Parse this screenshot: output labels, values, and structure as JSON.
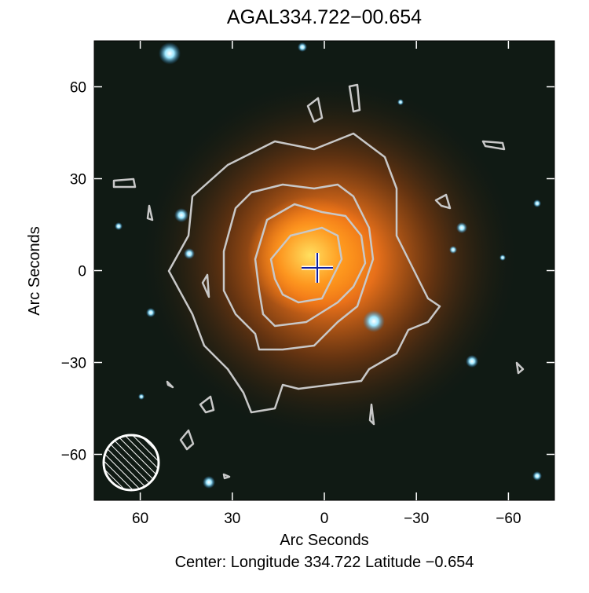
{
  "chart_data": {
    "type": "image",
    "title": "AGAL334.722−00.654",
    "xlabel": "Arc Seconds",
    "ylabel": "Arc Seconds",
    "footer": "Center:  Longitude 334.722 Latitude −0.654",
    "xlim": [
      75,
      -75
    ],
    "ylim": [
      -75,
      75
    ],
    "xticks": [
      60,
      30,
      0,
      {
        "value": -30,
        "label": "−30"
      },
      {
        "value": -60,
        "label": "−60"
      }
    ],
    "yticks": [
      {
        "value": -60,
        "label": "−60"
      },
      {
        "value": -30,
        "label": "−30"
      },
      0,
      30,
      60
    ]
  }
}
